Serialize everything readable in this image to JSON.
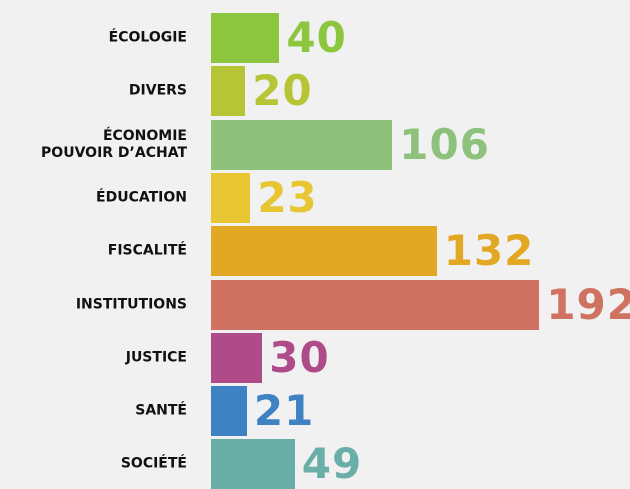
{
  "chart_data": {
    "type": "hbar",
    "categories": [
      "ÉCOLOGIE",
      "DIVERS",
      "ÉCONOMIE\nPOUVOIR D’ACHAT",
      "ÉDUCATION",
      "FISCALITÉ",
      "INSTITUTIONS",
      "JUSTICE",
      "SANTÉ",
      "SOCIÉTÉ"
    ],
    "values": [
      40,
      20,
      106,
      23,
      132,
      192,
      30,
      21,
      49
    ],
    "colors": [
      "#8cc63f",
      "#b6c535",
      "#8dc17c",
      "#e8c532",
      "#e3a823",
      "#d07262",
      "#b04b8a",
      "#3f82c4",
      "#6aaea8"
    ]
  }
}
